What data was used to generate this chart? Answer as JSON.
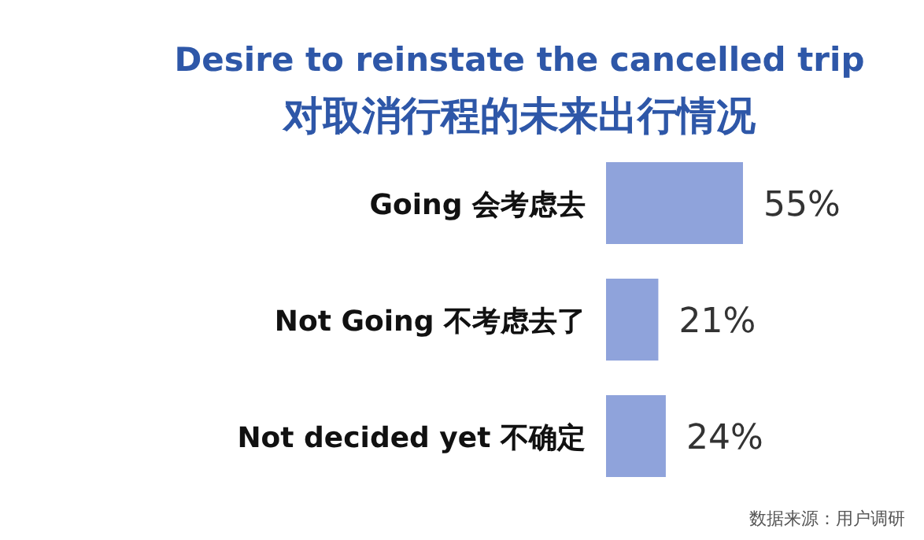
{
  "chart_data": {
    "type": "bar",
    "orientation": "horizontal",
    "title": "Desire to reinstate the cancelled trip",
    "subtitle": "对取消行程的未来出行情况",
    "categories": [
      "Going  会考虑去",
      "Not Going  不考虑去了",
      "Not decided yet  不确定"
    ],
    "values": [
      55,
      21,
      24
    ],
    "value_labels": [
      "55%",
      "21%",
      "24%"
    ],
    "color": "#8fa3db",
    "annotations": [
      "数据来源：用户调研"
    ]
  }
}
